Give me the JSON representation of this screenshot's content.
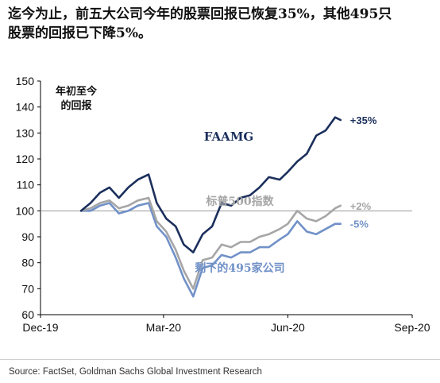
{
  "headline": {
    "line1": "迄今为止，前五大公司今年的股票回报已恢复35%，其他495只",
    "line2": "股票的回报已下降5%。"
  },
  "source": "Source: FactSet, Goldman Sachs Global Investment Research",
  "chart_data": {
    "type": "line",
    "title": "年初至今的回报",
    "title_lines": [
      "年初至今",
      "的回报"
    ],
    "x_ticks": [
      "Dec-19",
      "Mar-20",
      "Jun-20",
      "Sep-20"
    ],
    "y_ticks": [
      "60",
      "70",
      "80",
      "90",
      "100",
      "110",
      "120",
      "130",
      "140",
      "150"
    ],
    "ylim": [
      60,
      150
    ],
    "reference_line": 100,
    "grid": false,
    "colors": {
      "faamg": "#1b2f5c",
      "sp500": "#a6a6a6",
      "rest495": "#7191c8",
      "axis": "#000000"
    },
    "series": [
      {
        "name": "FAAMG",
        "end_label": "+35%",
        "x": [
          "2019-12-31",
          "2020-01-07",
          "2020-01-14",
          "2020-01-21",
          "2020-01-28",
          "2020-02-04",
          "2020-02-11",
          "2020-02-19",
          "2020-02-25",
          "2020-03-03",
          "2020-03-10",
          "2020-03-16",
          "2020-03-23",
          "2020-03-30",
          "2020-04-06",
          "2020-04-13",
          "2020-04-20",
          "2020-04-27",
          "2020-05-04",
          "2020-05-11",
          "2020-05-18",
          "2020-05-26",
          "2020-06-01",
          "2020-06-08",
          "2020-06-15",
          "2020-06-22",
          "2020-06-29",
          "2020-07-06",
          "2020-07-10"
        ],
        "values": [
          100,
          103,
          107,
          109,
          105,
          109,
          112,
          114,
          103,
          97,
          94,
          87,
          84,
          91,
          94,
          103,
          102,
          105,
          106,
          109,
          113,
          112,
          115,
          119,
          122,
          129,
          131,
          136,
          135
        ]
      },
      {
        "name": "标普500指数",
        "end_label": "+2%",
        "x": [
          "2019-12-31",
          "2020-01-07",
          "2020-01-14",
          "2020-01-21",
          "2020-01-28",
          "2020-02-04",
          "2020-02-11",
          "2020-02-19",
          "2020-02-25",
          "2020-03-03",
          "2020-03-10",
          "2020-03-16",
          "2020-03-23",
          "2020-03-30",
          "2020-04-06",
          "2020-04-13",
          "2020-04-20",
          "2020-04-27",
          "2020-05-04",
          "2020-05-11",
          "2020-05-18",
          "2020-05-26",
          "2020-06-01",
          "2020-06-08",
          "2020-06-15",
          "2020-06-22",
          "2020-06-29",
          "2020-07-06",
          "2020-07-10"
        ],
        "values": [
          100,
          101,
          103,
          104,
          101,
          102,
          104,
          105,
          96,
          92,
          85,
          77,
          70,
          81,
          82,
          87,
          86,
          88,
          88,
          90,
          91,
          93,
          95,
          100,
          97,
          96,
          98,
          101,
          102
        ]
      },
      {
        "name": "剩下的495家公司",
        "end_label": "-5%",
        "x": [
          "2019-12-31",
          "2020-01-07",
          "2020-01-14",
          "2020-01-21",
          "2020-01-28",
          "2020-02-04",
          "2020-02-11",
          "2020-02-19",
          "2020-02-25",
          "2020-03-03",
          "2020-03-10",
          "2020-03-16",
          "2020-03-23",
          "2020-03-30",
          "2020-04-06",
          "2020-04-13",
          "2020-04-20",
          "2020-04-27",
          "2020-05-04",
          "2020-05-11",
          "2020-05-18",
          "2020-05-26",
          "2020-06-01",
          "2020-06-08",
          "2020-06-15",
          "2020-06-22",
          "2020-06-29",
          "2020-07-06",
          "2020-07-10"
        ],
        "values": [
          100,
          100,
          102,
          103,
          99,
          100,
          102,
          103,
          94,
          90,
          82,
          74,
          67,
          78,
          79,
          83,
          82,
          84,
          84,
          86,
          86,
          89,
          91,
          96,
          92,
          91,
          93,
          95,
          95
        ]
      }
    ]
  }
}
